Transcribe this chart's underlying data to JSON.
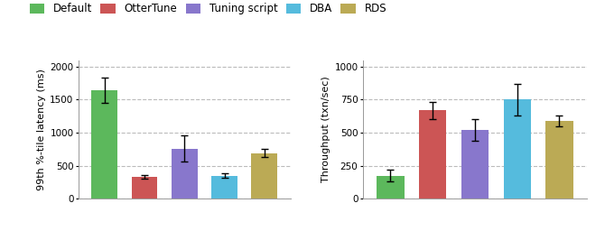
{
  "legend_labels": [
    "Default",
    "OtterTune",
    "Tuning script",
    "DBA",
    "RDS"
  ],
  "colors": [
    "#5cb85c",
    "#cc5555",
    "#8877cc",
    "#55bbdd",
    "#bbaa55"
  ],
  "latency_values": [
    1640,
    330,
    760,
    350,
    690
  ],
  "latency_errors": [
    190,
    30,
    195,
    35,
    65
  ],
  "throughput_values": [
    175,
    670,
    520,
    750,
    590
  ],
  "throughput_errors": [
    45,
    65,
    80,
    120,
    40
  ],
  "latency_ylabel": "99th %-tile latency (ms)",
  "throughput_ylabel": "Throughput (txn/sec)",
  "latency_ylim": [
    0,
    2100
  ],
  "throughput_ylim": [
    0,
    1050
  ],
  "latency_yticks": [
    0,
    500,
    1000,
    1500,
    2000
  ],
  "throughput_yticks": [
    0,
    250,
    500,
    750,
    1000
  ],
  "background_color": "#ffffff",
  "grid_color": "#bbbbbb",
  "bar_width": 0.65,
  "error_capsize": 3,
  "legend_fontsize": 8.5,
  "axis_fontsize": 7.5,
  "ylabel_fontsize": 8.0
}
